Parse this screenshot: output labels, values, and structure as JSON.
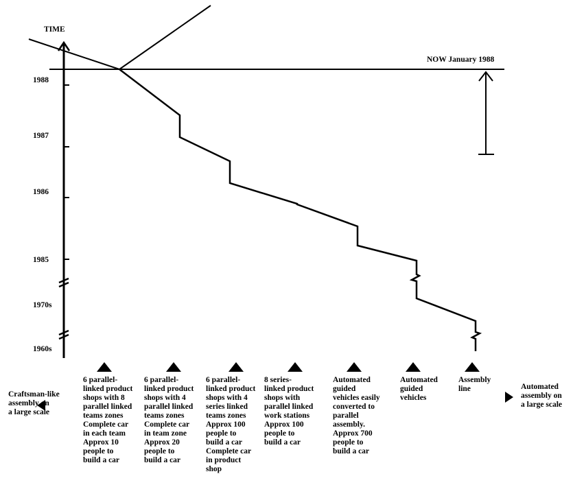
{
  "axis": {
    "title": "TIME",
    "ticks": [
      "1988",
      "1987",
      "1986",
      "1985",
      "1970s",
      "1960s"
    ]
  },
  "now_label": "NOW January 1988",
  "left_end": "Craftsman-like\nassembly on\na large scale",
  "right_end": "Automated\nassembly on\na large scale",
  "stages": [
    "6 parallel-\nlinked product\nshops with 8\nparallel linked\nteams zones\nComplete car\nin each team\nApprox 10\npeople to\nbuild a car",
    "6 parallel-\nlinked product\nshops with 4\nparallel linked\nteams zones\nComplete car\nin team zone\nApprox 20\npeople to\nbuild a car",
    "6 parallel-\nlinked product\nshops with 4\nseries linked\nteams zones\nApprox 100\npeople to\nbuild a car\nComplete car\nin product\nshop",
    "8 series-\nlinked product\nshops with\nparallel linked\nwork stations\nApprox 100\npeople to\nbuild a car",
    "Automated\nguided\nvehicles easily\nconverted to\nparallel\nassembly.\nApprox 700\npeople to\nbuild a car",
    "Automated\nguided\nvehicles",
    "Assembly\nline"
  ]
}
